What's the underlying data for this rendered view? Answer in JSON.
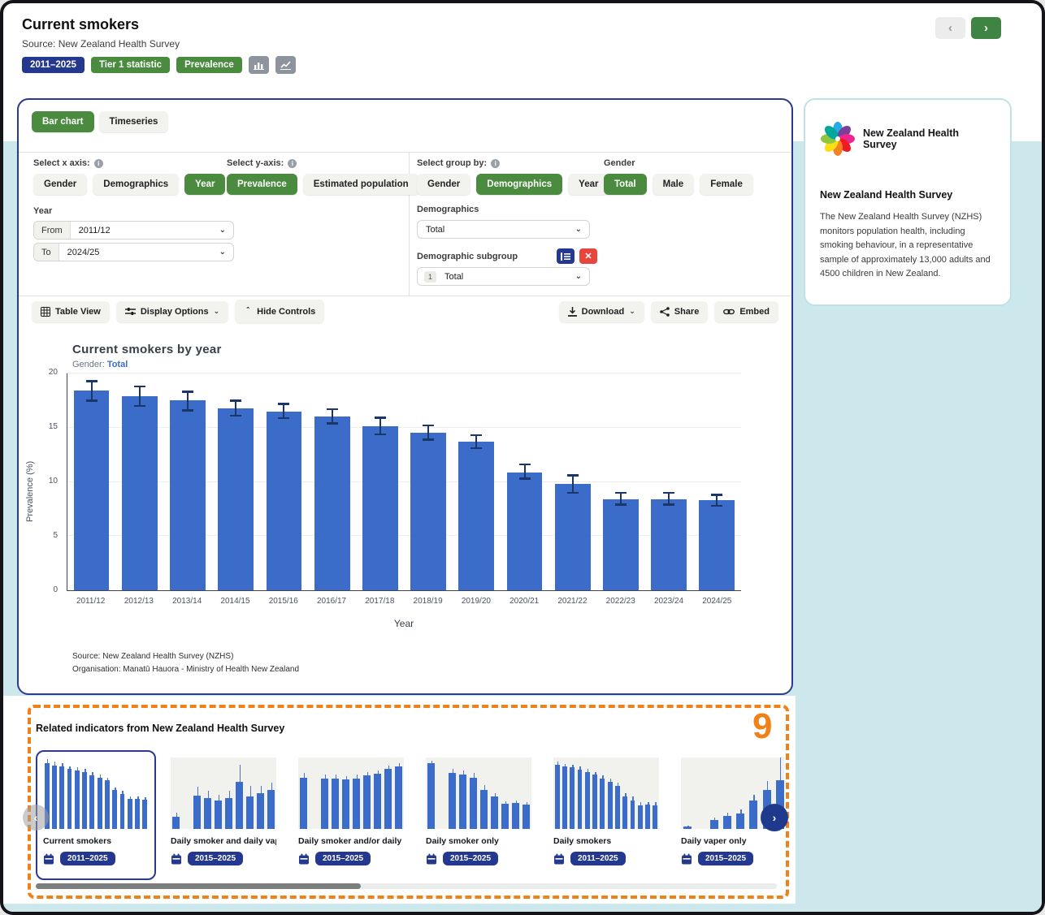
{
  "header": {
    "title": "Current smokers",
    "source": "Source: New Zealand Health Survey",
    "badges": [
      {
        "label": "2011–2025",
        "color": "#24388f"
      },
      {
        "label": "Tier 1 statistic",
        "color": "#4a8b3f"
      },
      {
        "label": "Prevalence",
        "color": "#4a8b3f"
      }
    ],
    "nav_prev": "‹",
    "nav_next": "›"
  },
  "tabs": {
    "bar_chart": "Bar chart",
    "timeseries": "Timeseries"
  },
  "controls": {
    "x_axis": {
      "label": "Select x axis:",
      "options": [
        "Gender",
        "Demographics",
        "Year"
      ],
      "selected": "Year"
    },
    "year": {
      "label": "Year",
      "from_label": "From",
      "from_value": "2011/12",
      "to_label": "To",
      "to_value": "2024/25"
    },
    "y_axis": {
      "label": "Select y-axis:",
      "options": [
        "Prevalence",
        "Estimated population"
      ],
      "selected": "Prevalence"
    },
    "group_by": {
      "label": "Select group by:",
      "options": [
        "Gender",
        "Demographics",
        "Year"
      ],
      "selected": "Demographics"
    },
    "gender": {
      "label": "Gender",
      "options": [
        "Total",
        "Male",
        "Female"
      ],
      "selected": "Total"
    },
    "demographics": {
      "label": "Demographics",
      "value": "Total"
    },
    "subgroup": {
      "label": "Demographic subgroup",
      "index": "1",
      "value": "Total"
    }
  },
  "toolbar": {
    "table_view": "Table View",
    "display_options": "Display Options",
    "hide_controls": "Hide Controls",
    "download": "Download",
    "share": "Share",
    "embed": "Embed"
  },
  "chart_meta": {
    "title": "Current smokers by year",
    "subtitle_label": "Gender:",
    "subtitle_value": "Total",
    "source_line1": "Source: New Zealand Health Survey (NZHS)",
    "source_line2": "Organisation: Manatū Hauora - Ministry of Health New Zealand"
  },
  "chart_data": {
    "type": "bar",
    "title": "Current smokers by year",
    "xlabel": "Year",
    "ylabel": "Prevalence (%)",
    "ylim": [
      0,
      20
    ],
    "yticks": [
      0,
      5,
      10,
      15,
      20
    ],
    "grid": true,
    "legend": false,
    "categories": [
      "2011/12",
      "2012/13",
      "2013/14",
      "2014/15",
      "2015/16",
      "2016/17",
      "2017/18",
      "2018/19",
      "2019/20",
      "2020/21",
      "2021/22",
      "2022/23",
      "2023/24",
      "2024/25"
    ],
    "values": [
      18.4,
      17.9,
      17.5,
      16.8,
      16.5,
      16.0,
      15.1,
      14.5,
      13.7,
      10.9,
      9.8,
      8.4,
      8.4,
      8.3
    ],
    "error_low": [
      17.4,
      16.9,
      16.5,
      16.0,
      15.8,
      15.3,
      14.3,
      13.8,
      13.0,
      10.2,
      8.9,
      7.8,
      7.8,
      7.7
    ],
    "error_high": [
      19.4,
      18.9,
      18.4,
      17.6,
      17.3,
      16.8,
      16.0,
      15.3,
      14.4,
      11.7,
      10.7,
      9.1,
      9.1,
      8.9
    ],
    "bar_color": "#3b6cc9",
    "error_color": "#1b3668"
  },
  "sidebar": {
    "logo_text": "New Zealand Health Survey",
    "heading": "New Zealand Health Survey",
    "description": "The New Zealand Health Survey (NZHS) monitors population health, including smoking behaviour, in a representative sample of approximately 13,000 adults and 4500 children in New Zealand."
  },
  "related": {
    "heading": "Related indicators from New Zealand Health Survey",
    "annotation": "9",
    "cards": [
      {
        "label": "Current smokers",
        "years": "2011–2025",
        "selected": true,
        "bars": [
          [
            92,
            6
          ],
          [
            89,
            5
          ],
          [
            87,
            5
          ],
          [
            84,
            4
          ],
          [
            82,
            4
          ],
          [
            80,
            4
          ],
          [
            75,
            5
          ],
          [
            72,
            4
          ],
          [
            68,
            4
          ],
          [
            54,
            4
          ],
          [
            49,
            5
          ],
          [
            42,
            4
          ],
          [
            42,
            4
          ],
          [
            41,
            3
          ]
        ]
      },
      {
        "label": "Daily smoker and daily vaper",
        "years": "2015–2025",
        "selected": false,
        "bars": [
          [
            17,
            6
          ],
          [
            0,
            0
          ],
          [
            47,
            12
          ],
          [
            43,
            10
          ],
          [
            40,
            8
          ],
          [
            43,
            10
          ],
          [
            66,
            24
          ],
          [
            46,
            14
          ],
          [
            50,
            10
          ],
          [
            55,
            10
          ]
        ]
      },
      {
        "label": "Daily smoker and/or daily vaper",
        "years": "2015–2025",
        "selected": false,
        "bars": [
          [
            72,
            6
          ],
          [
            0,
            0
          ],
          [
            71,
            5
          ],
          [
            71,
            5
          ],
          [
            69,
            5
          ],
          [
            71,
            5
          ],
          [
            75,
            5
          ],
          [
            77,
            5
          ],
          [
            84,
            5
          ],
          [
            87,
            5
          ]
        ]
      },
      {
        "label": "Daily smoker only",
        "years": "2015–2025",
        "selected": false,
        "bars": [
          [
            92,
            4
          ],
          [
            0,
            0
          ],
          [
            78,
            6
          ],
          [
            76,
            6
          ],
          [
            72,
            6
          ],
          [
            55,
            6
          ],
          [
            45,
            5
          ],
          [
            35,
            4
          ],
          [
            36,
            4
          ],
          [
            34,
            4
          ]
        ]
      },
      {
        "label": "Daily smokers",
        "years": "2011–2025",
        "selected": false,
        "bars": [
          [
            90,
            4
          ],
          [
            87,
            4
          ],
          [
            86,
            4
          ],
          [
            83,
            4
          ],
          [
            80,
            4
          ],
          [
            76,
            4
          ],
          [
            71,
            4
          ],
          [
            66,
            4
          ],
          [
            60,
            5
          ],
          [
            45,
            5
          ],
          [
            40,
            5
          ],
          [
            33,
            4
          ],
          [
            34,
            4
          ],
          [
            33,
            4
          ]
        ]
      },
      {
        "label": "Daily vaper only",
        "years": "2015–2025",
        "selected": false,
        "bars": [
          [
            3,
            2
          ],
          [
            0,
            0
          ],
          [
            12,
            4
          ],
          [
            18,
            5
          ],
          [
            22,
            5
          ],
          [
            40,
            8
          ],
          [
            55,
            12
          ],
          [
            68,
            42
          ]
        ]
      }
    ]
  },
  "colors": {
    "accent_navy": "#24388f",
    "accent_green": "#4a8b3f",
    "bar_blue": "#3b6cc9",
    "error_navy": "#1b3668",
    "background_teal": "#cde8ec",
    "annotation_orange": "#f08018",
    "delete_red": "#e8453c"
  }
}
